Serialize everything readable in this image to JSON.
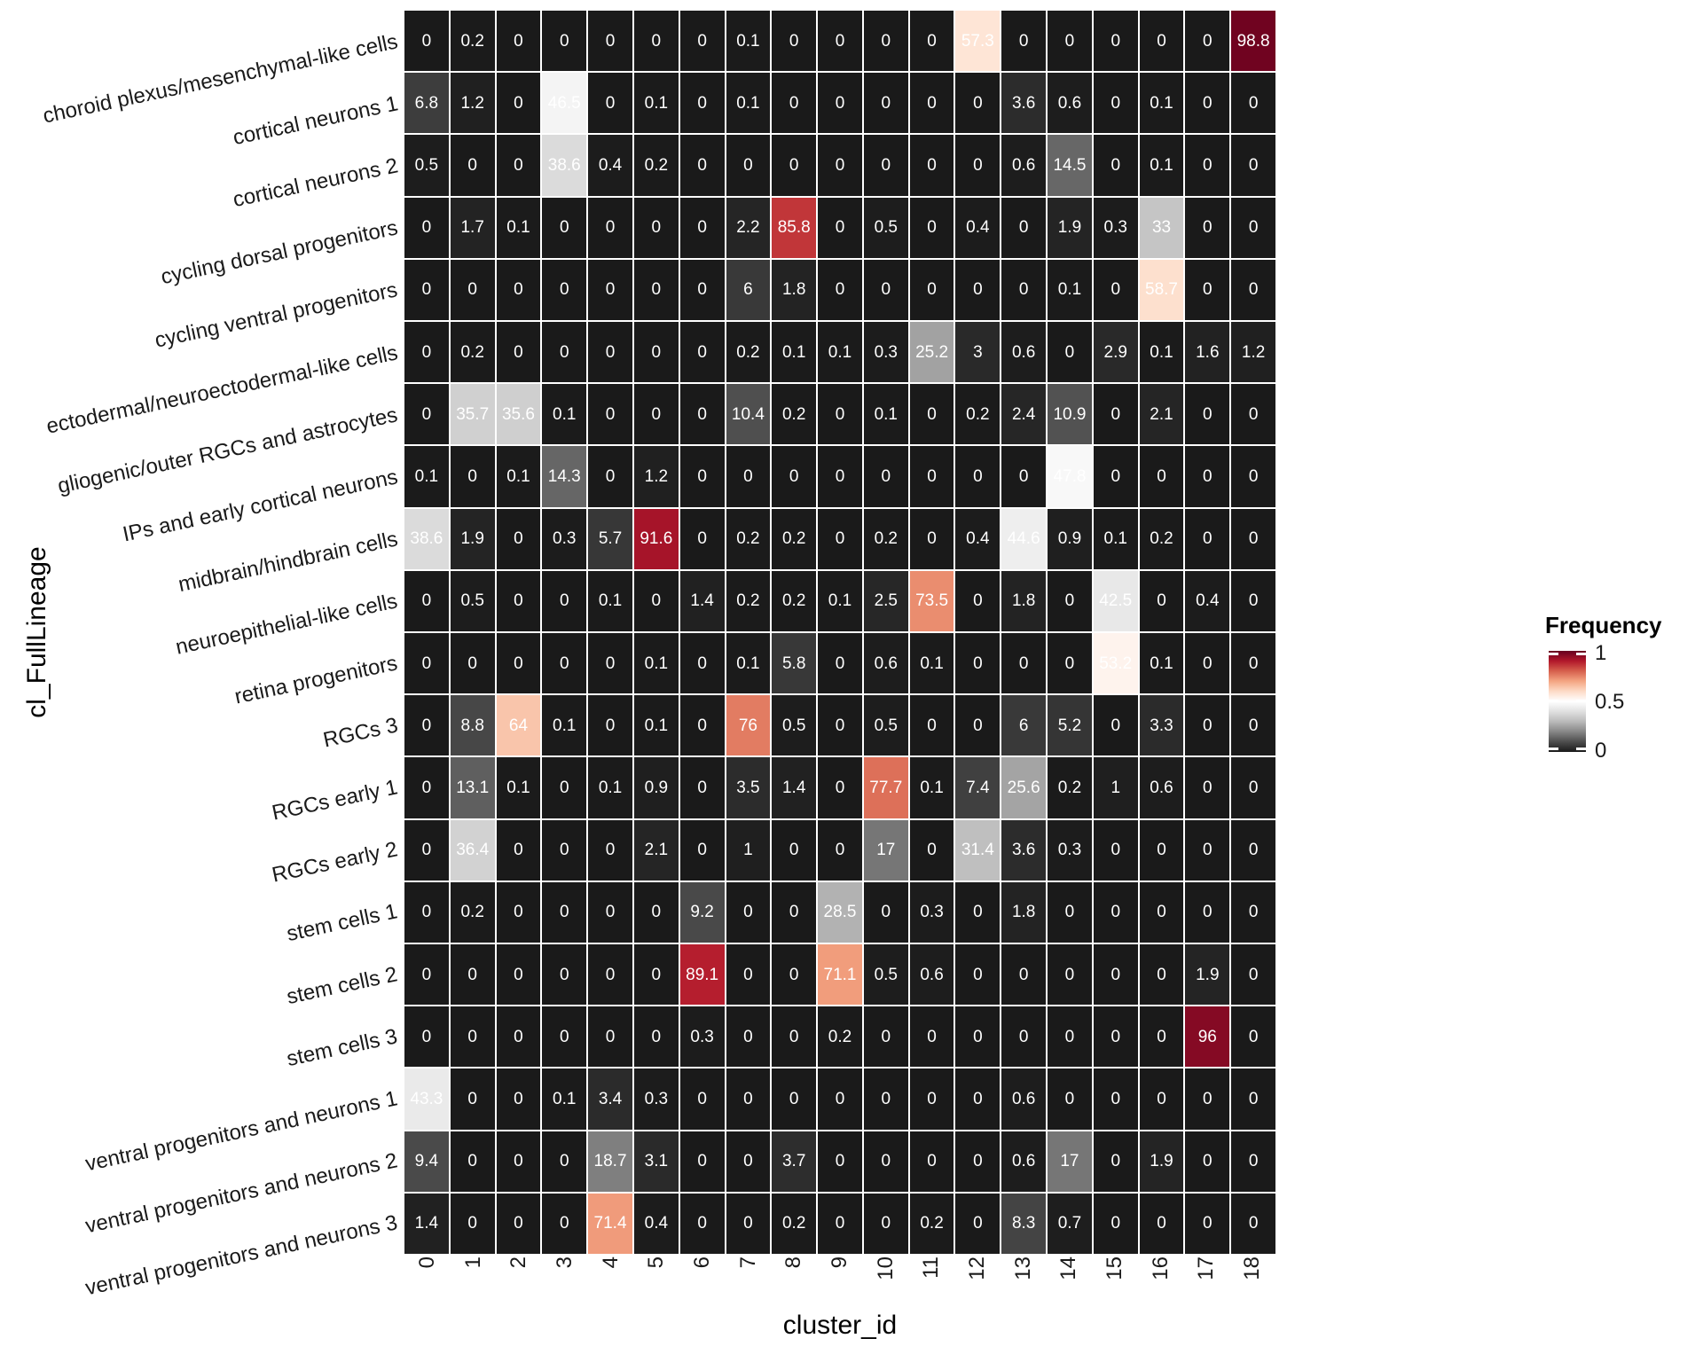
{
  "chart_data": {
    "type": "heatmap",
    "title": "",
    "xlabel": "cluster_id",
    "ylabel": "cl_FullLineage",
    "columns": [
      "0",
      "1",
      "2",
      "3",
      "4",
      "5",
      "6",
      "7",
      "8",
      "9",
      "10",
      "11",
      "12",
      "13",
      "14",
      "15",
      "16",
      "17",
      "18"
    ],
    "rows": [
      "choroid plexus/mesenchymal-like cells",
      "cortical neurons 1",
      "cortical neurons 2",
      "cycling dorsal progenitors",
      "cycling ventral progenitors",
      "ectodermal/neuroectodermal-like cells",
      "gliogenic/outer RGCs and astrocytes",
      "IPs and early cortical neurons",
      "midbrain/hindbrain cells",
      "neuroepithelial-like cells",
      "retina progenitors",
      "RGCs 3",
      "RGCs early 1",
      "RGCs early 2",
      "stem cells 1",
      "stem cells 2",
      "stem cells 3",
      "ventral progenitors and neurons 1",
      "ventral progenitors and neurons 2",
      "ventral progenitors and neurons 3"
    ],
    "values": [
      [
        0,
        0.2,
        0,
        0,
        0,
        0,
        0,
        0.1,
        0,
        0,
        0,
        0,
        57.3,
        0,
        0,
        0,
        0,
        0,
        98.8
      ],
      [
        6.8,
        1.2,
        0,
        46.5,
        0,
        0.1,
        0,
        0.1,
        0,
        0,
        0,
        0,
        0,
        3.6,
        0.6,
        0,
        0.1,
        0,
        0
      ],
      [
        0.5,
        0,
        0,
        38.6,
        0.4,
        0.2,
        0,
        0,
        0,
        0,
        0,
        0,
        0,
        0.6,
        14.5,
        0,
        0.1,
        0,
        0
      ],
      [
        0,
        1.7,
        0.1,
        0,
        0,
        0,
        0,
        2.2,
        85.8,
        0,
        0.5,
        0,
        0.4,
        0,
        1.9,
        0.3,
        33,
        0,
        0
      ],
      [
        0,
        0,
        0,
        0,
        0,
        0,
        0,
        6,
        1.8,
        0,
        0,
        0,
        0,
        0,
        0.1,
        0,
        58.7,
        0,
        0
      ],
      [
        0,
        0.2,
        0,
        0,
        0,
        0,
        0,
        0.2,
        0.1,
        0.1,
        0.3,
        25.2,
        3,
        0.6,
        0,
        2.9,
        0.1,
        1.6,
        1.2
      ],
      [
        0,
        35.7,
        35.6,
        0.1,
        0,
        0,
        0,
        10.4,
        0.2,
        0,
        0.1,
        0,
        0.2,
        2.4,
        10.9,
        0,
        2.1,
        0,
        0
      ],
      [
        0.1,
        0,
        0.1,
        14.3,
        0,
        1.2,
        0,
        0,
        0,
        0,
        0,
        0,
        0,
        0,
        47.8,
        0,
        0,
        0,
        0
      ],
      [
        38.6,
        1.9,
        0,
        0.3,
        5.7,
        91.6,
        0,
        0.2,
        0.2,
        0,
        0.2,
        0,
        0.4,
        44.6,
        0.9,
        0.1,
        0.2,
        0,
        0
      ],
      [
        0,
        0.5,
        0,
        0,
        0.1,
        0,
        1.4,
        0.2,
        0.2,
        0.1,
        2.5,
        73.5,
        0,
        1.8,
        0,
        42.5,
        0,
        0.4,
        0
      ],
      [
        0,
        0,
        0,
        0,
        0,
        0.1,
        0,
        0.1,
        5.8,
        0,
        0.6,
        0.1,
        0,
        0,
        0,
        53.2,
        0.1,
        0,
        0
      ],
      [
        0,
        8.8,
        64,
        0.1,
        0,
        0.1,
        0,
        76,
        0.5,
        0,
        0.5,
        0,
        0,
        6,
        5.2,
        0,
        3.3,
        0,
        0
      ],
      [
        0,
        13.1,
        0.1,
        0,
        0.1,
        0.9,
        0,
        3.5,
        1.4,
        0,
        77.7,
        0.1,
        7.4,
        25.6,
        0.2,
        1,
        0.6,
        0,
        0
      ],
      [
        0,
        36.4,
        0,
        0,
        0,
        2.1,
        0,
        1,
        0,
        0,
        17,
        0,
        31.4,
        3.6,
        0.3,
        0,
        0,
        0,
        0
      ],
      [
        0,
        0.2,
        0,
        0,
        0,
        0,
        9.2,
        0,
        0,
        28.5,
        0,
        0.3,
        0,
        1.8,
        0,
        0,
        0,
        0,
        0
      ],
      [
        0,
        0,
        0,
        0,
        0,
        0,
        89.1,
        0,
        0,
        71.1,
        0.5,
        0.6,
        0,
        0,
        0,
        0,
        0,
        1.9,
        0
      ],
      [
        0,
        0,
        0,
        0,
        0,
        0,
        0.3,
        0,
        0,
        0.2,
        0,
        0,
        0,
        0,
        0,
        0,
        0,
        96,
        0
      ],
      [
        43.3,
        0,
        0,
        0.1,
        3.4,
        0.3,
        0,
        0,
        0,
        0,
        0,
        0,
        0,
        0.6,
        0,
        0,
        0,
        0,
        0
      ],
      [
        9.4,
        0,
        0,
        0,
        18.7,
        3.1,
        0,
        0,
        3.7,
        0,
        0,
        0,
        0,
        0.6,
        17,
        0,
        1.9,
        0,
        0
      ],
      [
        1.4,
        0,
        0,
        0,
        71.4,
        0.4,
        0,
        0,
        0.2,
        0,
        0,
        0.2,
        0,
        8.3,
        0.7,
        0,
        0,
        0,
        0
      ]
    ],
    "domain": [
      0,
      100
    ],
    "palette": [
      "#1a1a1a",
      "#4d4d4d",
      "#878787",
      "#bababa",
      "#e0e0e0",
      "#ffffff",
      "#fddbc7",
      "#f4a582",
      "#d6604d",
      "#b2182b",
      "#67001f"
    ],
    "grid_line_color": "#ffffff",
    "cell_text_color": "#ffffff",
    "legend": {
      "title": "Frequency",
      "ticks": [
        "1",
        "0.5",
        "0"
      ],
      "position": "right"
    }
  }
}
